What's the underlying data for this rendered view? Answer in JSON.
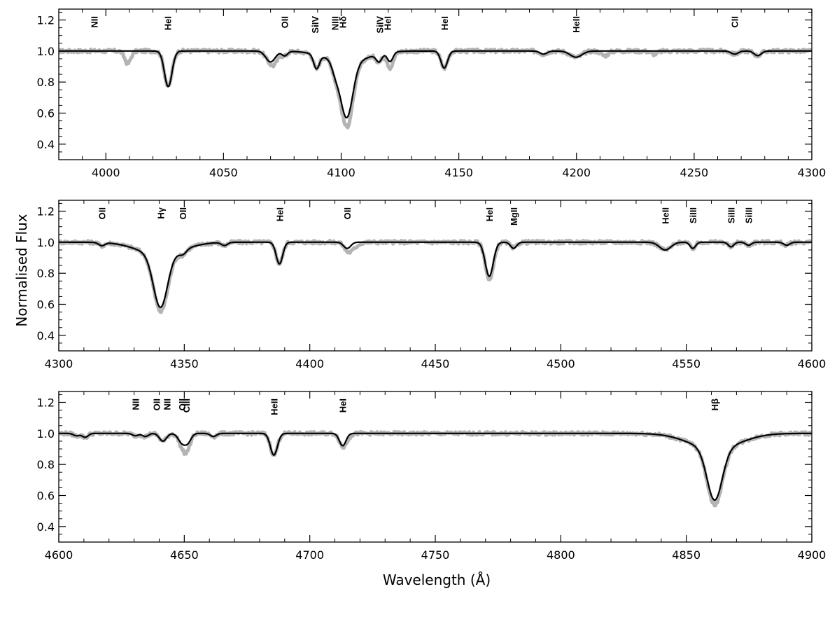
{
  "chart_data": {
    "type": "line",
    "ylabel": "Normalised Flux",
    "xlabel": "Wavelength (Å)",
    "legend": "none",
    "grid": false,
    "series_styles": [
      {
        "role": "observed",
        "color": "#b4b4b4"
      },
      {
        "role": "model",
        "color": "#000000"
      }
    ],
    "panels": [
      {
        "xlim": [
          3980,
          4300
        ],
        "ylim": [
          0.3,
          1.27
        ],
        "xticks": [
          "4000",
          "4050",
          "4100",
          "4150",
          "4200",
          "4250",
          "4300"
        ],
        "yticks": [
          "0.4",
          "0.6",
          "0.8",
          "1.0",
          "1.2"
        ],
        "lines": [
          {
            "label": [
              "NII"
            ],
            "wavelength": 3995
          },
          {
            "label": [
              "HeI"
            ],
            "wavelength": 4026.2
          },
          {
            "label": [
              "OII"
            ],
            "wavelength": 4075.9
          },
          {
            "label": [
              "SiIV"
            ],
            "wavelength": 4088.9
          },
          {
            "label": [
              "NIII",
              "Hδ"
            ],
            "wavelength": 4099
          },
          {
            "label": [
              "SiIV",
              "HeI"
            ],
            "wavelength": 4118
          },
          {
            "label": [
              "HeI"
            ],
            "wavelength": 4143.8
          },
          {
            "label": [
              "HeII"
            ],
            "wavelength": 4199.8
          },
          {
            "label": [
              "CII"
            ],
            "wavelength": 4267.2
          }
        ],
        "absorption": [
          {
            "center": 4026.5,
            "depth": 0.23,
            "width": 1.6
          },
          {
            "center": 4070,
            "depth": 0.07,
            "width": 2
          },
          {
            "center": 4076,
            "depth": 0.03,
            "width": 1.2
          },
          {
            "center": 4089.5,
            "depth": 0.09,
            "width": 1.2
          },
          {
            "center": 4097.5,
            "depth": 0.06,
            "width": 1.5
          },
          {
            "center": 4102.3,
            "depth": 0.36,
            "width": 2.6
          },
          {
            "center": 4102.3,
            "depth": 0.07,
            "width": 9
          },
          {
            "center": 4116.1,
            "depth": 0.05,
            "width": 1.2
          },
          {
            "center": 4120.8,
            "depth": 0.06,
            "width": 1.2
          },
          {
            "center": 4143.8,
            "depth": 0.11,
            "width": 1.4
          },
          {
            "center": 4186,
            "depth": 0.02,
            "width": 1.5
          },
          {
            "center": 4199.8,
            "depth": 0.04,
            "width": 2.5
          },
          {
            "center": 4267.2,
            "depth": 0.02,
            "width": 1.5
          },
          {
            "center": 4277,
            "depth": 0.03,
            "width": 1.5
          }
        ],
        "observed_extra": [
          {
            "center": 4009.3,
            "depth": 0.08,
            "width": 1.3
          },
          {
            "center": 4072,
            "depth": 0.04,
            "width": 1.5
          },
          {
            "center": 4103,
            "depth": 0.06,
            "width": 3
          },
          {
            "center": 4121,
            "depth": 0.04,
            "width": 1.5
          },
          {
            "center": 4212,
            "depth": 0.03,
            "width": 1.5
          },
          {
            "center": 4233,
            "depth": 0.02,
            "width": 1.5
          }
        ]
      },
      {
        "xlim": [
          4300,
          4600
        ],
        "ylim": [
          0.3,
          1.27
        ],
        "xticks": [
          "4300",
          "4350",
          "4400",
          "4450",
          "4500",
          "4550",
          "4600"
        ],
        "yticks": [
          "0.4",
          "0.6",
          "0.8",
          "1.0",
          "1.2"
        ],
        "lines": [
          {
            "label": [
              "OII"
            ],
            "wavelength": 4317.1
          },
          {
            "label": [
              "Hγ"
            ],
            "wavelength": 4340.5
          },
          {
            "label": [
              "OII"
            ],
            "wavelength": 4349.4
          },
          {
            "label": [
              "HeI"
            ],
            "wavelength": 4387.9
          },
          {
            "label": [
              "OII"
            ],
            "wavelength": 4414.9
          },
          {
            "label": [
              "HeI"
            ],
            "wavelength": 4471.5
          },
          {
            "label": [
              "MgII"
            ],
            "wavelength": 4481.2
          },
          {
            "label": [
              "HeII"
            ],
            "wavelength": 4541.6
          },
          {
            "label": [
              "SiIII"
            ],
            "wavelength": 4552.6
          },
          {
            "label": [
              "SiIII"
            ],
            "wavelength": 4567.8
          },
          {
            "label": [
              "SiIII"
            ],
            "wavelength": 4574.8
          }
        ],
        "absorption": [
          {
            "center": 4317.1,
            "depth": 0.02,
            "width": 1.2
          },
          {
            "center": 4340.5,
            "depth": 0.34,
            "width": 2.8
          },
          {
            "center": 4340.5,
            "depth": 0.08,
            "width": 9
          },
          {
            "center": 4349.4,
            "depth": 0.03,
            "width": 1.5
          },
          {
            "center": 4366,
            "depth": 0.02,
            "width": 1.2
          },
          {
            "center": 4387.9,
            "depth": 0.14,
            "width": 1.3
          },
          {
            "center": 4414.9,
            "depth": 0.04,
            "width": 1.4
          },
          {
            "center": 4471.5,
            "depth": 0.22,
            "width": 1.6
          },
          {
            "center": 4481.2,
            "depth": 0.04,
            "width": 1.2
          },
          {
            "center": 4541.6,
            "depth": 0.05,
            "width": 2.3
          },
          {
            "center": 4552.6,
            "depth": 0.04,
            "width": 1.1
          },
          {
            "center": 4567.8,
            "depth": 0.03,
            "width": 1.1
          },
          {
            "center": 4574.8,
            "depth": 0.02,
            "width": 1.1
          },
          {
            "center": 4590,
            "depth": 0.02,
            "width": 1.2
          }
        ],
        "observed_extra": [
          {
            "center": 4417,
            "depth": 0.04,
            "width": 1.8
          },
          {
            "center": 4472.5,
            "depth": 0.03,
            "width": 1.5
          },
          {
            "center": 4342,
            "depth": 0.03,
            "width": 3
          }
        ]
      },
      {
        "xlim": [
          4600,
          4900
        ],
        "ylim": [
          0.3,
          1.27
        ],
        "xticks": [
          "4600",
          "4650",
          "4700",
          "4750",
          "4800",
          "4850",
          "4900"
        ],
        "yticks": [
          "0.4",
          "0.6",
          "0.8",
          "1.0",
          "1.2"
        ],
        "lines": [
          {
            "label": [
              "NII"
            ],
            "wavelength": 4630.5
          },
          {
            "label": [
              "OII"
            ],
            "wavelength": 4638.9
          },
          {
            "label": [
              "NII"
            ],
            "wavelength": 4643.1
          },
          {
            "label": [
              "OII"
            ],
            "wavelength": 4649.1
          },
          {
            "label": [
              "CIII"
            ],
            "wavelength": 4650.8
          },
          {
            "label": [
              "HeII"
            ],
            "wavelength": 4685.7
          },
          {
            "label": [
              "HeI"
            ],
            "wavelength": 4713.1
          },
          {
            "label": [
              "Hβ"
            ],
            "wavelength": 4861.3
          }
        ],
        "absorption": [
          {
            "center": 4607,
            "depth": 0.015,
            "width": 1.2
          },
          {
            "center": 4610.5,
            "depth": 0.025,
            "width": 1.2
          },
          {
            "center": 4630.5,
            "depth": 0.015,
            "width": 1.2
          },
          {
            "center": 4634.5,
            "depth": 0.02,
            "width": 1.2
          },
          {
            "center": 4641.5,
            "depth": 0.05,
            "width": 1.4
          },
          {
            "center": 4649.1,
            "depth": 0.06,
            "width": 1.5
          },
          {
            "center": 4651.5,
            "depth": 0.05,
            "width": 1.3
          },
          {
            "center": 4661.6,
            "depth": 0.02,
            "width": 1.2
          },
          {
            "center": 4685.7,
            "depth": 0.14,
            "width": 1.4
          },
          {
            "center": 4713.1,
            "depth": 0.08,
            "width": 1.3
          },
          {
            "center": 4861.3,
            "depth": 0.33,
            "width": 3
          },
          {
            "center": 4861.3,
            "depth": 0.1,
            "width": 10
          }
        ],
        "observed_extra": [
          {
            "center": 4650.5,
            "depth": 0.05,
            "width": 1.5
          },
          {
            "center": 4715,
            "depth": 0.02,
            "width": 1.5
          },
          {
            "center": 4862,
            "depth": 0.03,
            "width": 3
          }
        ]
      }
    ]
  }
}
